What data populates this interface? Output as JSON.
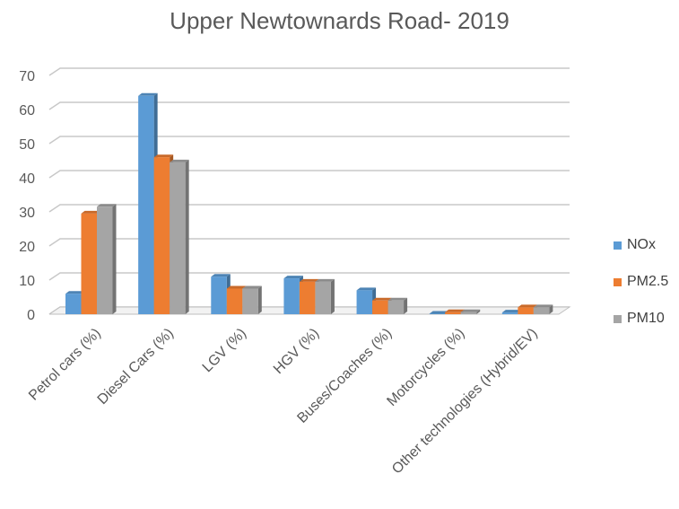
{
  "chart_data": {
    "type": "bar",
    "title": "Upper Newtownards Road- 2019",
    "xlabel": "",
    "ylabel": "",
    "ylim": [
      0,
      70
    ],
    "yticks": [
      "0",
      "10",
      "20",
      "30",
      "40",
      "50",
      "60",
      "70"
    ],
    "grid": true,
    "legend_position": "right",
    "categories": [
      "Petrol cars (%)",
      "Diesel Cars (%)",
      "LGV (%)",
      "HGV (%)",
      "Buses/Coaches (%)",
      "Motorcycles (%)",
      "Other technologies (Hybrid/EV)"
    ],
    "series": [
      {
        "name": "NOx",
        "color": "#5B9BD5",
        "values": [
          6,
          64,
          11,
          10.5,
          7,
          0.1,
          0.5
        ]
      },
      {
        "name": "PM2.5",
        "color": "#ED7D31",
        "values": [
          29.5,
          46,
          7.5,
          9.5,
          4,
          0.6,
          2
        ]
      },
      {
        "name": "PM10",
        "color": "#A5A5A5",
        "values": [
          31.5,
          44.5,
          7.5,
          9.5,
          4,
          0.6,
          2
        ]
      }
    ]
  }
}
